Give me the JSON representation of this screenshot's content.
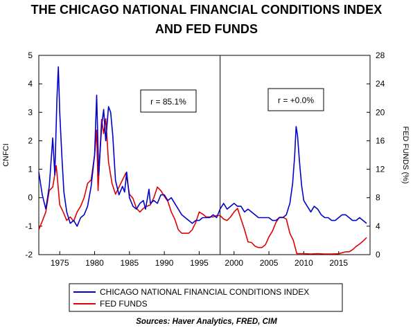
{
  "title_line1": "THE CHICAGO NATIONAL FINANCIAL CONDITIONS INDEX",
  "title_line2": "AND FED FUNDS",
  "source": "Sources:  Haver Analytics, FRED, CIM",
  "annotations": [
    "r = 85.1%",
    "r = +0.0%"
  ],
  "colors": {
    "nfci": "#0000cc",
    "fedfunds": "#dd0000"
  },
  "chart_data": {
    "type": "line",
    "xlabel": "",
    "ylabel_left": "CNFCI",
    "ylabel_right": "FED FUNDS (%)",
    "xlim": [
      1972,
      2019.5
    ],
    "ylim_left": [
      -2,
      5
    ],
    "ylim_right": [
      0,
      28
    ],
    "x_ticks": [
      1975,
      1980,
      1985,
      1990,
      1995,
      2000,
      2005,
      2010,
      2015
    ],
    "y_ticks_left": [
      -2,
      -1,
      0,
      1,
      2,
      3,
      4,
      5
    ],
    "y_ticks_right": [
      0,
      4,
      8,
      12,
      16,
      20,
      24,
      28
    ],
    "vertical_line_x": 1998,
    "legend_position": "bottom",
    "series": [
      {
        "name": "CHICAGO NATIONAL FINANCIAL CONDITIONS INDEX",
        "axis": "left",
        "points": [
          [
            1972.0,
            0.9
          ],
          [
            1972.5,
            0.1
          ],
          [
            1973.0,
            -0.4
          ],
          [
            1973.5,
            0.4
          ],
          [
            1974.0,
            2.1
          ],
          [
            1974.3,
            0.8
          ],
          [
            1974.6,
            3.5
          ],
          [
            1974.8,
            4.6
          ],
          [
            1975.0,
            3.0
          ],
          [
            1975.3,
            1.5
          ],
          [
            1975.6,
            0.2
          ],
          [
            1976.0,
            -0.5
          ],
          [
            1976.5,
            -0.9
          ],
          [
            1977.0,
            -0.8
          ],
          [
            1977.5,
            -1.0
          ],
          [
            1978.0,
            -0.7
          ],
          [
            1978.5,
            -0.6
          ],
          [
            1979.0,
            -0.3
          ],
          [
            1979.5,
            0.4
          ],
          [
            1980.0,
            1.5
          ],
          [
            1980.3,
            3.6
          ],
          [
            1980.6,
            0.8
          ],
          [
            1981.0,
            2.5
          ],
          [
            1981.3,
            3.1
          ],
          [
            1981.6,
            2.0
          ],
          [
            1982.0,
            3.2
          ],
          [
            1982.3,
            3.0
          ],
          [
            1982.6,
            2.2
          ],
          [
            1983.0,
            0.6
          ],
          [
            1983.5,
            0.1
          ],
          [
            1984.0,
            0.4
          ],
          [
            1984.3,
            0.2
          ],
          [
            1984.6,
            0.9
          ],
          [
            1985.0,
            0.0
          ],
          [
            1985.5,
            -0.3
          ],
          [
            1986.0,
            -0.4
          ],
          [
            1986.5,
            -0.2
          ],
          [
            1987.0,
            -0.1
          ],
          [
            1987.3,
            -0.4
          ],
          [
            1987.8,
            0.3
          ],
          [
            1988.0,
            -0.2
          ],
          [
            1988.5,
            -0.1
          ],
          [
            1989.0,
            -0.2
          ],
          [
            1989.5,
            0.1
          ],
          [
            1990.0,
            0.1
          ],
          [
            1990.5,
            -0.1
          ],
          [
            1991.0,
            0.0
          ],
          [
            1991.5,
            -0.2
          ],
          [
            1992.0,
            -0.4
          ],
          [
            1992.5,
            -0.6
          ],
          [
            1993.0,
            -0.7
          ],
          [
            1993.5,
            -0.8
          ],
          [
            1994.0,
            -0.9
          ],
          [
            1994.5,
            -0.8
          ],
          [
            1995.0,
            -0.8
          ],
          [
            1995.5,
            -0.7
          ],
          [
            1996.0,
            -0.7
          ],
          [
            1996.5,
            -0.7
          ],
          [
            1997.0,
            -0.6
          ],
          [
            1997.5,
            -0.7
          ],
          [
            1998.0,
            -0.4
          ],
          [
            1998.5,
            -0.2
          ],
          [
            1999.0,
            -0.4
          ],
          [
            1999.5,
            -0.3
          ],
          [
            2000.0,
            -0.2
          ],
          [
            2000.5,
            -0.3
          ],
          [
            2001.0,
            -0.3
          ],
          [
            2001.5,
            -0.5
          ],
          [
            2002.0,
            -0.4
          ],
          [
            2002.5,
            -0.5
          ],
          [
            2003.0,
            -0.6
          ],
          [
            2003.5,
            -0.7
          ],
          [
            2004.0,
            -0.7
          ],
          [
            2004.5,
            -0.7
          ],
          [
            2005.0,
            -0.7
          ],
          [
            2005.5,
            -0.8
          ],
          [
            2006.0,
            -0.8
          ],
          [
            2006.5,
            -0.7
          ],
          [
            2007.0,
            -0.7
          ],
          [
            2007.5,
            -0.6
          ],
          [
            2008.0,
            -0.2
          ],
          [
            2008.4,
            0.5
          ],
          [
            2008.7,
            1.5
          ],
          [
            2008.9,
            2.5
          ],
          [
            2009.1,
            2.2
          ],
          [
            2009.4,
            1.2
          ],
          [
            2009.7,
            0.4
          ],
          [
            2010.0,
            -0.1
          ],
          [
            2010.5,
            -0.3
          ],
          [
            2011.0,
            -0.5
          ],
          [
            2011.5,
            -0.3
          ],
          [
            2012.0,
            -0.4
          ],
          [
            2012.5,
            -0.6
          ],
          [
            2013.0,
            -0.7
          ],
          [
            2013.5,
            -0.7
          ],
          [
            2014.0,
            -0.8
          ],
          [
            2014.5,
            -0.8
          ],
          [
            2015.0,
            -0.7
          ],
          [
            2015.5,
            -0.6
          ],
          [
            2016.0,
            -0.6
          ],
          [
            2016.5,
            -0.7
          ],
          [
            2017.0,
            -0.8
          ],
          [
            2017.5,
            -0.8
          ],
          [
            2018.0,
            -0.7
          ],
          [
            2018.5,
            -0.8
          ],
          [
            2019.0,
            -0.9
          ]
        ]
      },
      {
        "name": "FED FUNDS",
        "axis": "right",
        "points": [
          [
            1972.0,
            3.5
          ],
          [
            1972.5,
            4.7
          ],
          [
            1973.0,
            6.0
          ],
          [
            1973.5,
            9.0
          ],
          [
            1974.0,
            9.5
          ],
          [
            1974.5,
            12.5
          ],
          [
            1975.0,
            7.0
          ],
          [
            1975.5,
            6.0
          ],
          [
            1976.0,
            4.8
          ],
          [
            1976.5,
            5.3
          ],
          [
            1977.0,
            4.7
          ],
          [
            1977.5,
            6.0
          ],
          [
            1978.0,
            6.8
          ],
          [
            1978.5,
            8.0
          ],
          [
            1979.0,
            10.0
          ],
          [
            1979.5,
            10.5
          ],
          [
            1980.0,
            14.0
          ],
          [
            1980.3,
            17.5
          ],
          [
            1980.5,
            9.0
          ],
          [
            1981.0,
            19.0
          ],
          [
            1981.3,
            17.0
          ],
          [
            1981.6,
            19.1
          ],
          [
            1982.0,
            13.0
          ],
          [
            1982.5,
            10.0
          ],
          [
            1983.0,
            8.5
          ],
          [
            1983.5,
            9.5
          ],
          [
            1984.0,
            10.5
          ],
          [
            1984.5,
            11.5
          ],
          [
            1985.0,
            8.5
          ],
          [
            1985.5,
            7.9
          ],
          [
            1986.0,
            6.5
          ],
          [
            1986.5,
            6.0
          ],
          [
            1987.0,
            6.5
          ],
          [
            1987.5,
            6.8
          ],
          [
            1988.0,
            7.0
          ],
          [
            1988.5,
            8.0
          ],
          [
            1989.0,
            9.5
          ],
          [
            1989.5,
            9.0
          ],
          [
            1990.0,
            8.2
          ],
          [
            1990.5,
            7.5
          ],
          [
            1991.0,
            6.0
          ],
          [
            1991.5,
            5.0
          ],
          [
            1992.0,
            3.5
          ],
          [
            1992.5,
            3.0
          ],
          [
            1993.0,
            3.0
          ],
          [
            1993.5,
            3.0
          ],
          [
            1994.0,
            3.5
          ],
          [
            1994.5,
            4.5
          ],
          [
            1995.0,
            6.0
          ],
          [
            1995.5,
            5.7
          ],
          [
            1996.0,
            5.3
          ],
          [
            1996.5,
            5.3
          ],
          [
            1997.0,
            5.3
          ],
          [
            1997.5,
            5.5
          ],
          [
            1998.0,
            5.5
          ],
          [
            1998.5,
            5.0
          ],
          [
            1999.0,
            4.8
          ],
          [
            1999.5,
            5.3
          ],
          [
            2000.0,
            6.0
          ],
          [
            2000.5,
            6.5
          ],
          [
            2001.0,
            5.0
          ],
          [
            2001.5,
            3.5
          ],
          [
            2002.0,
            1.8
          ],
          [
            2002.5,
            1.7
          ],
          [
            2003.0,
            1.2
          ],
          [
            2003.5,
            1.0
          ],
          [
            2004.0,
            1.0
          ],
          [
            2004.5,
            1.4
          ],
          [
            2005.0,
            2.5
          ],
          [
            2005.5,
            3.3
          ],
          [
            2006.0,
            4.5
          ],
          [
            2006.5,
            5.25
          ],
          [
            2007.0,
            5.25
          ],
          [
            2007.5,
            5.0
          ],
          [
            2008.0,
            3.0
          ],
          [
            2008.5,
            2.0
          ],
          [
            2009.0,
            0.15
          ],
          [
            2010.0,
            0.15
          ],
          [
            2011.0,
            0.1
          ],
          [
            2012.0,
            0.15
          ],
          [
            2013.0,
            0.1
          ],
          [
            2014.0,
            0.1
          ],
          [
            2015.0,
            0.13
          ],
          [
            2016.0,
            0.4
          ],
          [
            2016.5,
            0.4
          ],
          [
            2017.0,
            0.7
          ],
          [
            2017.5,
            1.15
          ],
          [
            2018.0,
            1.5
          ],
          [
            2018.5,
            1.9
          ],
          [
            2019.0,
            2.4
          ]
        ]
      }
    ]
  }
}
